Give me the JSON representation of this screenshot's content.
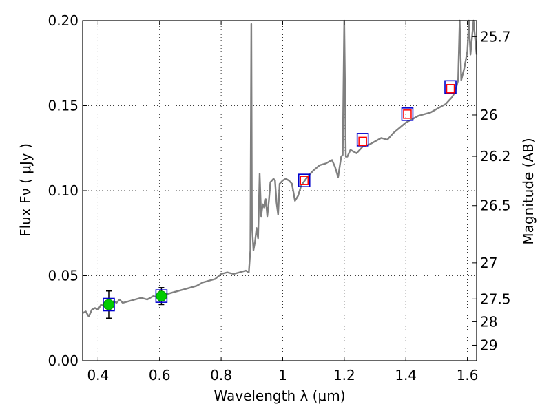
{
  "chart_data": {
    "type": "line",
    "xlabel": "Wavelength  λ (μm)",
    "ylabel": "Flux  Fν ( μJy )",
    "ylabel_right": "Magnitude (AB)",
    "xlim": [
      0.35,
      1.63
    ],
    "ylim": [
      0.0,
      0.2
    ],
    "grid": true,
    "x_ticks": [
      {
        "value": 0.4,
        "label": "0.4"
      },
      {
        "value": 0.6,
        "label": "0.6"
      },
      {
        "value": 0.8,
        "label": "0.8"
      },
      {
        "value": 1.0,
        "label": "1"
      },
      {
        "value": 1.2,
        "label": "1.2"
      },
      {
        "value": 1.4,
        "label": "1.4"
      },
      {
        "value": 1.6,
        "label": "1.6"
      }
    ],
    "y_ticks": [
      {
        "value": 0.0,
        "label": "0.00"
      },
      {
        "value": 0.05,
        "label": "0.05"
      },
      {
        "value": 0.1,
        "label": "0.10"
      },
      {
        "value": 0.15,
        "label": "0.15"
      },
      {
        "value": 0.2,
        "label": "0.20"
      }
    ],
    "right_ticks": [
      {
        "value": 25.7,
        "label": "25.7"
      },
      {
        "value": 26,
        "label": "26"
      },
      {
        "value": 26.2,
        "label": "26.2"
      },
      {
        "value": 26.5,
        "label": "26.5"
      },
      {
        "value": 27,
        "label": "27"
      },
      {
        "value": 27.5,
        "label": "27.5"
      },
      {
        "value": 28,
        "label": "28"
      },
      {
        "value": 29,
        "label": "29"
      }
    ],
    "series": [
      {
        "kind": "model-spectrum",
        "color": "#808080",
        "points": [
          [
            0.35,
            0.028
          ],
          [
            0.36,
            0.029
          ],
          [
            0.37,
            0.026
          ],
          [
            0.38,
            0.03
          ],
          [
            0.39,
            0.031
          ],
          [
            0.4,
            0.03
          ],
          [
            0.41,
            0.033
          ],
          [
            0.42,
            0.032
          ],
          [
            0.43,
            0.034
          ],
          [
            0.44,
            0.033
          ],
          [
            0.45,
            0.035
          ],
          [
            0.46,
            0.034
          ],
          [
            0.47,
            0.036
          ],
          [
            0.48,
            0.034
          ],
          [
            0.5,
            0.035
          ],
          [
            0.52,
            0.036
          ],
          [
            0.54,
            0.037
          ],
          [
            0.56,
            0.036
          ],
          [
            0.58,
            0.038
          ],
          [
            0.6,
            0.037
          ],
          [
            0.62,
            0.039
          ],
          [
            0.64,
            0.04
          ],
          [
            0.66,
            0.041
          ],
          [
            0.68,
            0.042
          ],
          [
            0.7,
            0.043
          ],
          [
            0.72,
            0.044
          ],
          [
            0.74,
            0.046
          ],
          [
            0.76,
            0.047
          ],
          [
            0.78,
            0.048
          ],
          [
            0.8,
            0.051
          ],
          [
            0.82,
            0.052
          ],
          [
            0.84,
            0.051
          ],
          [
            0.86,
            0.052
          ],
          [
            0.88,
            0.053
          ],
          [
            0.89,
            0.052
          ],
          [
            0.895,
            0.065
          ],
          [
            0.898,
            0.198
          ],
          [
            0.9,
            0.08
          ],
          [
            0.905,
            0.065
          ],
          [
            0.91,
            0.07
          ],
          [
            0.915,
            0.078
          ],
          [
            0.92,
            0.072
          ],
          [
            0.925,
            0.11
          ],
          [
            0.93,
            0.085
          ],
          [
            0.935,
            0.092
          ],
          [
            0.94,
            0.09
          ],
          [
            0.945,
            0.095
          ],
          [
            0.95,
            0.085
          ],
          [
            0.955,
            0.094
          ],
          [
            0.96,
            0.105
          ],
          [
            0.97,
            0.107
          ],
          [
            0.975,
            0.106
          ],
          [
            0.98,
            0.093
          ],
          [
            0.985,
            0.086
          ],
          [
            0.99,
            0.104
          ],
          [
            1.0,
            0.106
          ],
          [
            1.01,
            0.107
          ],
          [
            1.02,
            0.106
          ],
          [
            1.03,
            0.104
          ],
          [
            1.04,
            0.094
          ],
          [
            1.05,
            0.097
          ],
          [
            1.06,
            0.103
          ],
          [
            1.08,
            0.108
          ],
          [
            1.1,
            0.112
          ],
          [
            1.12,
            0.115
          ],
          [
            1.14,
            0.116
          ],
          [
            1.16,
            0.118
          ],
          [
            1.17,
            0.114
          ],
          [
            1.18,
            0.108
          ],
          [
            1.19,
            0.12
          ],
          [
            1.195,
            0.121
          ],
          [
            1.2,
            0.2
          ],
          [
            1.205,
            0.12
          ],
          [
            1.21,
            0.12
          ],
          [
            1.22,
            0.124
          ],
          [
            1.24,
            0.122
          ],
          [
            1.26,
            0.126
          ],
          [
            1.28,
            0.127
          ],
          [
            1.3,
            0.129
          ],
          [
            1.32,
            0.131
          ],
          [
            1.34,
            0.13
          ],
          [
            1.36,
            0.134
          ],
          [
            1.38,
            0.137
          ],
          [
            1.4,
            0.14
          ],
          [
            1.42,
            0.142
          ],
          [
            1.44,
            0.144
          ],
          [
            1.46,
            0.145
          ],
          [
            1.48,
            0.146
          ],
          [
            1.5,
            0.148
          ],
          [
            1.52,
            0.15
          ],
          [
            1.53,
            0.151
          ],
          [
            1.54,
            0.153
          ],
          [
            1.55,
            0.155
          ],
          [
            1.56,
            0.158
          ],
          [
            1.57,
            0.165
          ],
          [
            1.575,
            0.2
          ],
          [
            1.58,
            0.165
          ],
          [
            1.59,
            0.172
          ],
          [
            1.6,
            0.182
          ],
          [
            1.605,
            0.2
          ],
          [
            1.61,
            0.18
          ],
          [
            1.62,
            0.2
          ],
          [
            1.63,
            0.18
          ]
        ]
      }
    ],
    "observed_points": [
      {
        "x": 0.435,
        "y": 0.033,
        "yerr": 0.008,
        "color": "#00cc00",
        "shape": "circle"
      },
      {
        "x": 0.606,
        "y": 0.038,
        "yerr": 0.005,
        "color": "#00cc00",
        "shape": "circle"
      }
    ],
    "model_squares": [
      {
        "x": 0.435,
        "y": 0.033
      },
      {
        "x": 0.606,
        "y": 0.038
      },
      {
        "x": 1.07,
        "y": 0.106
      },
      {
        "x": 1.26,
        "y": 0.13
      },
      {
        "x": 1.405,
        "y": 0.145
      },
      {
        "x": 1.545,
        "y": 0.161
      }
    ],
    "red_squares": [
      {
        "x": 1.07,
        "y": 0.106
      },
      {
        "x": 1.26,
        "y": 0.129
      },
      {
        "x": 1.405,
        "y": 0.145
      },
      {
        "x": 1.545,
        "y": 0.16
      }
    ],
    "colors": {
      "spectrum": "#808080",
      "model_square": "#0000cc",
      "red_square": "#ff0000",
      "point": "#00cc00",
      "grid": "#000000"
    }
  }
}
